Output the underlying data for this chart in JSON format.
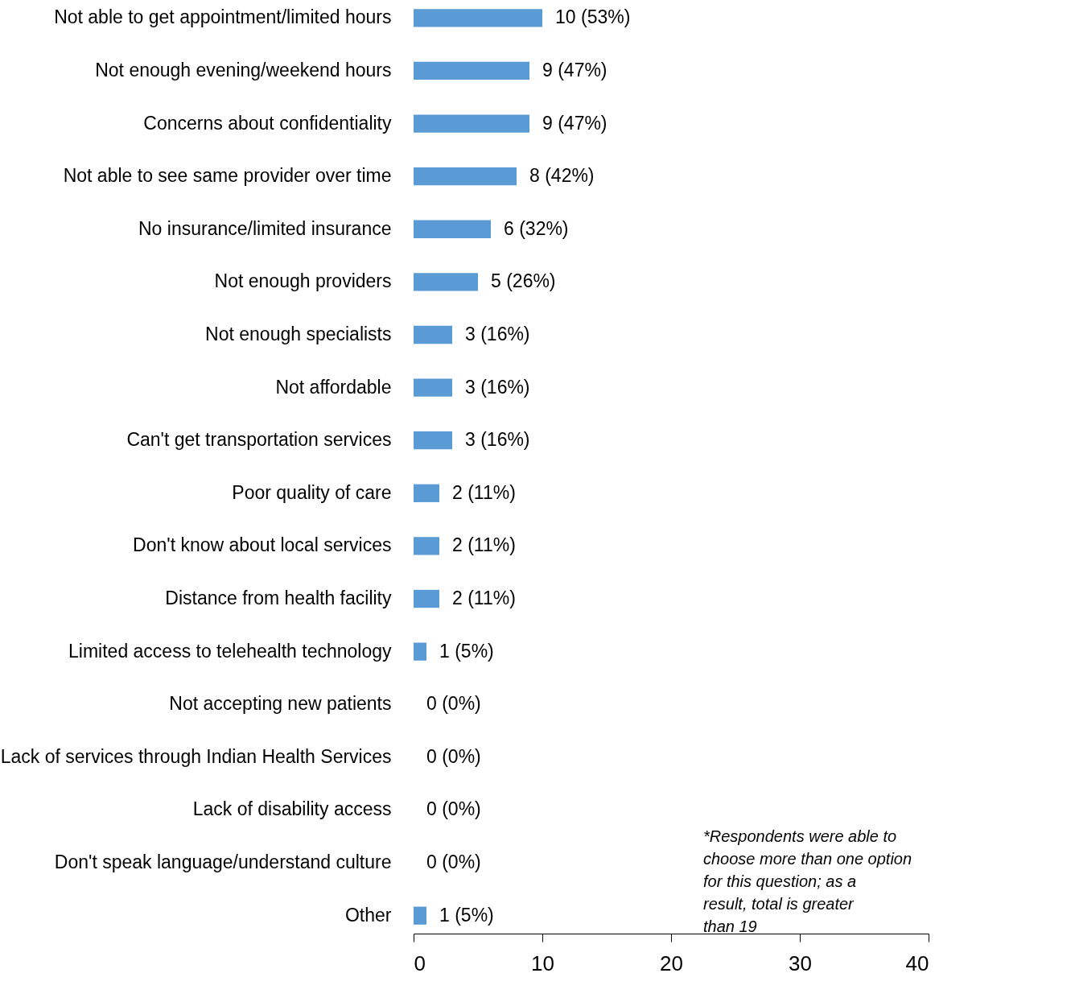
{
  "chart_data": {
    "type": "bar",
    "orientation": "horizontal",
    "categories": [
      "Not able to get appointment/limited hours",
      "Not enough evening/weekend hours",
      "Concerns about confidentiality",
      "Not able to see same provider over time",
      "No insurance/limited insurance",
      "Not enough providers",
      "Not enough specialists",
      "Not affordable",
      "Can't get transportation services",
      "Poor quality of care",
      "Don't know about local services",
      "Distance from health facility",
      "Limited access to telehealth technology",
      "Not accepting new patients",
      "Lack of services through Indian Health Services",
      "Lack of disability access",
      "Don't speak language/understand culture",
      "Other"
    ],
    "values": [
      10,
      9,
      9,
      8,
      6,
      5,
      3,
      3,
      3,
      2,
      2,
      2,
      1,
      0,
      0,
      0,
      0,
      1
    ],
    "value_labels": [
      "10 (53%)",
      "9 (47%)",
      "9 (47%)",
      "8 (42%)",
      "6 (32%)",
      "5 (26%)",
      "3 (16%)",
      "3 (16%)",
      "3 (16%)",
      "2 (11%)",
      "2 (11%)",
      "2 (11%)",
      "1 (5%)",
      "0 (0%)",
      "0 (0%)",
      "0 (0%)",
      "0 (0%)",
      "1 (5%)"
    ],
    "color": "#5b9bd5",
    "xlim": [
      0,
      40
    ],
    "xticks": [
      0,
      10,
      20,
      30,
      40
    ],
    "grid": false,
    "annotations": [
      "*Respondents were able to choose more than one option for this question; as a result, total is greater than 19"
    ]
  }
}
